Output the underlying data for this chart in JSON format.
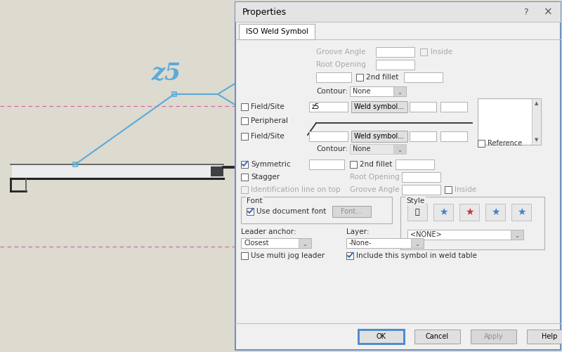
{
  "bg_left": "#dddacf",
  "dialog_bg": "#f0f0f0",
  "dialog_border": "#b0b0b0",
  "title_bg": "#e8e8e8",
  "white": "#ffffff",
  "blue_color": "#5aabda",
  "dashed_pink": "#d060a0",
  "dark_line": "#1a1a1a",
  "checked_blue": "#3a6fbd",
  "gray_text": "#a0a0a0",
  "dark_text": "#303030",
  "input_border": "#b0b0b0",
  "btn_bg": "#e0e0e0",
  "btn_border": "#a0a0a0",
  "drop_arrow_bg": "#d8d8d8",
  "disabled_bg": "#e8e8e8",
  "z5_label": "z5",
  "dialog_title": "Properties",
  "tab_label": "ISO Weld Symbol"
}
